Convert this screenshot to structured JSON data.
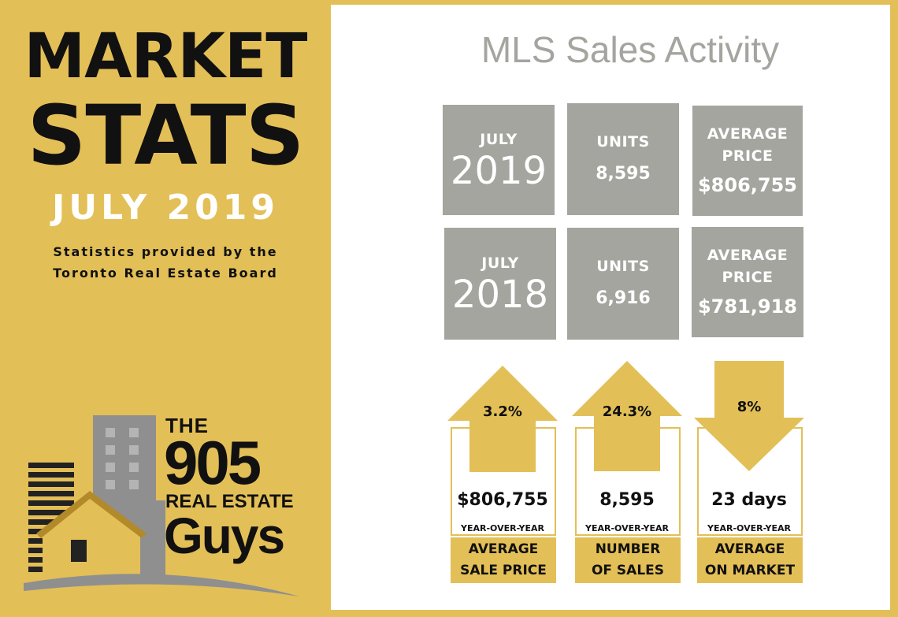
{
  "left": {
    "title_line1": "MARKET",
    "title_line2": "STATS",
    "month": "JULY 2019",
    "credit_line1": "Statistics provided by the",
    "credit_line2": "Toronto Real Estate Board",
    "logo": {
      "the": "THE",
      "number": "905",
      "real_estate": "REAL ESTATE",
      "guys": "Guys"
    }
  },
  "right": {
    "title": "MLS Sales Activity",
    "rows": [
      {
        "month": "JULY",
        "year": "2019",
        "units_label": "UNITS",
        "units_value": "8,595",
        "price_label_1": "AVERAGE",
        "price_label_2": "PRICE",
        "price_value": "$806,755"
      },
      {
        "month": "JULY",
        "year": "2018",
        "units_label": "UNITS",
        "units_value": "6,916",
        "price_label_1": "AVERAGE",
        "price_label_2": "PRICE",
        "price_value": "$781,918"
      }
    ],
    "cards": [
      {
        "direction": "up",
        "percent": "3.2%",
        "value": "$806,755",
        "yoy": "YEAR-OVER-YEAR",
        "label_1": "AVERAGE",
        "label_2": "SALE PRICE"
      },
      {
        "direction": "up",
        "percent": "24.3%",
        "value": "8,595",
        "yoy": "YEAR-OVER-YEAR",
        "label_1": "NUMBER",
        "label_2": "OF SALES"
      },
      {
        "direction": "down",
        "percent": "8%",
        "value": "23 days",
        "yoy": "YEAR-OVER-YEAR",
        "label_1": "AVERAGE",
        "label_2": "ON MARKET"
      }
    ]
  },
  "colors": {
    "gold": "#e3bf57",
    "gray": "#a3a59e",
    "white": "#ffffff",
    "text": "#111111"
  }
}
